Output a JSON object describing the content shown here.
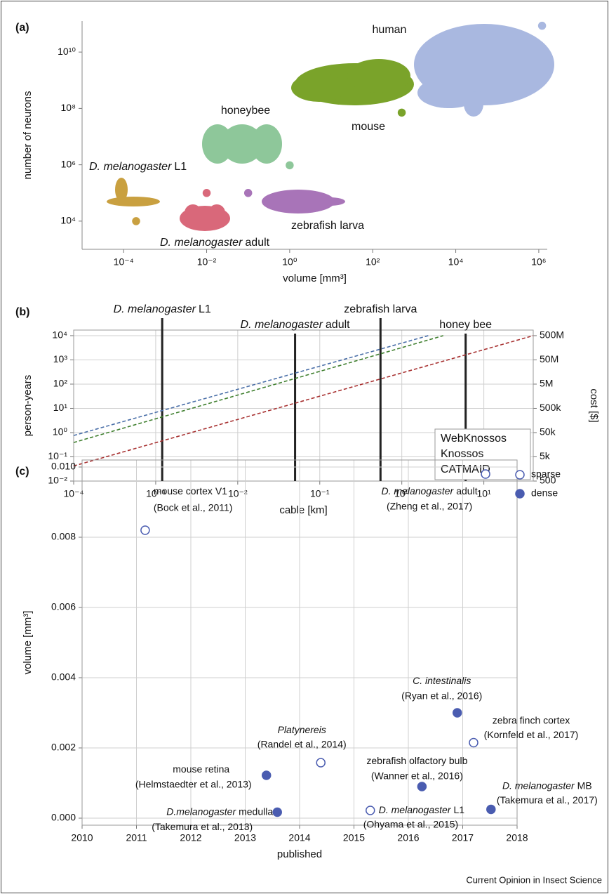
{
  "chart_data": [
    {
      "type": "scatter",
      "panel_label": "(a)",
      "x_label": "volume [mm³]",
      "y_label": "number of neurons",
      "log_x": true,
      "log_y": true,
      "grid": false,
      "xlim": [
        1e-05,
        1600000
      ],
      "ylim": [
        1000,
        126000000000
      ],
      "xticks": [
        {
          "value": 0.0001,
          "label": "10⁻⁴"
        },
        {
          "value": 0.01,
          "label": "10⁻²"
        },
        {
          "value": 1,
          "label": "10⁰"
        },
        {
          "value": 100,
          "label": "10²"
        },
        {
          "value": 10000,
          "label": "10⁴"
        },
        {
          "value": 1000000,
          "label": "10⁶"
        }
      ],
      "yticks": [
        {
          "value": 10000,
          "label": "10⁴"
        },
        {
          "value": 1000000,
          "label": "10⁶"
        },
        {
          "value": 100000000,
          "label": "10⁸"
        },
        {
          "value": 10000000000,
          "label": "10¹⁰"
        }
      ],
      "series": [
        {
          "name": "human",
          "color": "#a9b8e0",
          "x": [
            1200000
          ],
          "values": [
            86000000000
          ]
        },
        {
          "name": "mouse",
          "color": "#7aa32a",
          "x": [
            500
          ],
          "values": [
            71000000
          ]
        },
        {
          "name": "honeybee",
          "color": "#8ec79a",
          "x": [
            1
          ],
          "values": [
            960000
          ]
        },
        {
          "name_italic": "D. melanogaster",
          "name": "L1",
          "color": "#c9a040",
          "x": [
            0.0002
          ],
          "values": [
            10000
          ]
        },
        {
          "name_italic": "D. melanogaster",
          "name": "adult",
          "color": "#d9687a",
          "x": [
            0.01
          ],
          "values": [
            100000
          ]
        },
        {
          "name": "zebrafish larva",
          "color": "#a874b8",
          "x": [
            0.1
          ],
          "values": [
            100000
          ]
        }
      ]
    },
    {
      "type": "line",
      "panel_label": "(b)",
      "x_label": "cable [km]",
      "y_label": "person-years",
      "y2_label": "cost [$]",
      "log_x": true,
      "log_y": true,
      "grid": true,
      "legend": "lower right",
      "xlim": [
        0.0001,
        40
      ],
      "ylim": [
        0.01,
        17000
      ],
      "y2lim": [
        500,
        850000000
      ],
      "xticks": [
        {
          "value": 0.0001,
          "label": "10⁻⁴"
        },
        {
          "value": 0.001,
          "label": "10⁻³"
        },
        {
          "value": 0.01,
          "label": "10⁻²"
        },
        {
          "value": 0.1,
          "label": "10⁻¹"
        },
        {
          "value": 1,
          "label": "10⁰"
        },
        {
          "value": 10,
          "label": "10¹"
        }
      ],
      "yticks": [
        {
          "value": 0.01,
          "label": "10⁻²"
        },
        {
          "value": 0.1,
          "label": "10⁻¹"
        },
        {
          "value": 1,
          "label": "10⁰"
        },
        {
          "value": 10,
          "label": "10¹"
        },
        {
          "value": 100,
          "label": "10²"
        },
        {
          "value": 1000,
          "label": "10³"
        },
        {
          "value": 10000,
          "label": "10⁴"
        }
      ],
      "y2ticks": [
        500,
        {
          "value": 5000,
          "label": "5k"
        },
        {
          "value": 50000,
          "label": "50k"
        },
        {
          "value": 500000,
          "label": "500k"
        },
        {
          "value": 5000000,
          "label": "5M"
        },
        {
          "value": 50000000,
          "label": "50M"
        },
        {
          "value": 500000000,
          "label": "500M"
        }
      ],
      "series": [
        {
          "name": "WebKnossos",
          "color": "#a83232",
          "dashed": true,
          "x": [
            0.0001,
            40
          ],
          "values": [
            0.042,
            10000
          ]
        },
        {
          "name": "Knossos",
          "color": "#3f7f2e",
          "dashed": true,
          "x": [
            0.0001,
            3.2
          ],
          "values": [
            0.39,
            10000
          ]
        },
        {
          "name": "CATMAID",
          "color": "#4a6fa8",
          "dashed": true,
          "x": [
            0.0001,
            2.1
          ],
          "values": [
            0.76,
            10000
          ]
        }
      ],
      "annotations": [
        {
          "name_italic": "D. melanogaster",
          "name": "L1",
          "x": 0.0012
        },
        {
          "name_italic": "D. melanogaster",
          "name": "adult",
          "x": 0.05
        },
        {
          "name": "zebrafish larva",
          "x": 0.55
        },
        {
          "name": "honey bee",
          "x": 6
        }
      ]
    },
    {
      "type": "scatter",
      "panel_label": "(c)",
      "x_label": "published",
      "y_label": "volume [mm³]",
      "log_x": false,
      "log_y": false,
      "grid": true,
      "legend": "upper right",
      "xlim": [
        2010,
        2018
      ],
      "ylim": [
        -0.0002,
        0.0102
      ],
      "xticks": [
        2010,
        2011,
        2012,
        2013,
        2014,
        2015,
        2016,
        2017,
        2018
      ],
      "yticks": [
        {
          "value": 0,
          "label": "0.000"
        },
        0.002,
        0.004,
        0.006,
        0.008,
        {
          "value": 0.01,
          "label": "0.010"
        }
      ],
      "series": [
        {
          "name": "sparse",
          "color": "#4a5cb0",
          "filled": false,
          "x": [
            2011.16,
            2017.42,
            2017.2,
            2014.39,
            2015.3
          ],
          "values": [
            0.0082,
            0.0098,
            0.00215,
            0.00158,
            0.00022
          ],
          "labels": [
            {
              "name": "mouse cortex V1",
              "citation": "(Bock et al., 2011)"
            },
            {
              "name_italic": "D. melanogaster",
              "name": "adult",
              "citation": "(Zheng et al., 2017)"
            },
            {
              "name": "zebra finch cortex",
              "citation": "(Kornfeld et al., 2017)"
            },
            {
              "name_italic": "Platynereis",
              "citation": "(Randel et al., 2014)"
            },
            {
              "name_italic": "D. melanogaster",
              "name": "L1",
              "citation": "(Ohyama et al., 2015)"
            }
          ]
        },
        {
          "name": "dense",
          "color": "#4a5cb0",
          "filled": true,
          "x": [
            2016.9,
            2013.39,
            2016.25,
            2013.59,
            2017.52
          ],
          "values": [
            0.003,
            0.00122,
            0.0009,
            0.00017,
            0.00025
          ],
          "labels": [
            {
              "name_italic": "C. intestinalis",
              "citation": "(Ryan et al., 2016)"
            },
            {
              "name": "mouse retina",
              "citation": "(Helmstaedter et al., 2013)"
            },
            {
              "name": "zebrafish olfactory bulb",
              "citation": "(Wanner et al., 2016)"
            },
            {
              "name_italic": "D.melanogaster",
              "name": "medulla",
              "citation": "(Takemura et al., 2013)"
            },
            {
              "name_italic": "D. melanogaster",
              "name": "MB",
              "citation": "(Takemura et al., 2017)"
            }
          ]
        }
      ]
    }
  ],
  "credit": "Current Opinion in Insect Science"
}
